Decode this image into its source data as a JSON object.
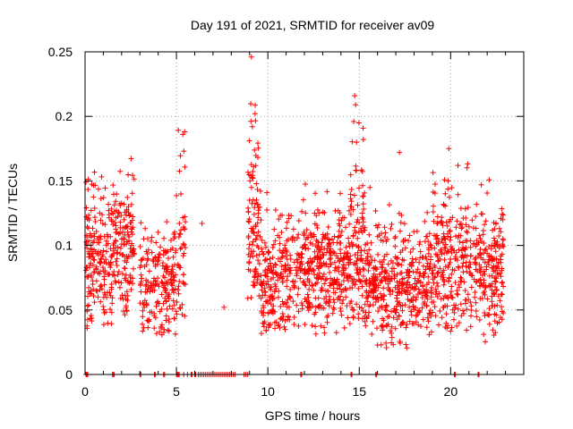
{
  "chart_data": {
    "type": "scatter",
    "title": "Day 191 of 2021, SRMTID for receiver av09",
    "xlabel": "GPS time / hours",
    "ylabel": "SRMTID / TECUs",
    "xlim": [
      0,
      24
    ],
    "ylim": [
      0,
      0.25
    ],
    "x_ticks": [
      "0",
      "5",
      "10",
      "15",
      "20"
    ],
    "x_tick_values": [
      0,
      5,
      10,
      15,
      20
    ],
    "y_ticks": [
      "0",
      "0.05",
      "0.1",
      "0.15",
      "0.2",
      "0.25"
    ],
    "y_tick_values": [
      0,
      0.05,
      0.1,
      0.15,
      0.2,
      0.25
    ],
    "grid": true,
    "marker": "+",
    "series_color": "#ff0000",
    "clusters": [
      {
        "x0": 0.05,
        "x1": 1.5,
        "center": 0.09,
        "spread": 0.03,
        "min": 0.035,
        "max": 0.16,
        "count": 190
      },
      {
        "x0": 1.5,
        "x1": 2.7,
        "center": 0.095,
        "spread": 0.025,
        "min": 0.045,
        "max": 0.175,
        "count": 150
      },
      {
        "x0": 3.0,
        "x1": 5.0,
        "center": 0.07,
        "spread": 0.02,
        "min": 0.03,
        "max": 0.13,
        "count": 200
      },
      {
        "x0": 5.0,
        "x1": 5.5,
        "center": 0.095,
        "spread": 0.04,
        "min": 0.045,
        "max": 0.19,
        "count": 45
      },
      {
        "x0": 8.9,
        "x1": 9.6,
        "center": 0.12,
        "spread": 0.035,
        "min": 0.05,
        "max": 0.21,
        "count": 100
      },
      {
        "x0": 9.6,
        "x1": 11.3,
        "center": 0.075,
        "spread": 0.025,
        "min": 0.03,
        "max": 0.165,
        "count": 200
      },
      {
        "x0": 11.3,
        "x1": 14.5,
        "center": 0.082,
        "spread": 0.022,
        "min": 0.03,
        "max": 0.15,
        "count": 380
      },
      {
        "x0": 14.5,
        "x1": 15.3,
        "center": 0.1,
        "spread": 0.035,
        "min": 0.04,
        "max": 0.215,
        "count": 110
      },
      {
        "x0": 15.3,
        "x1": 19.0,
        "center": 0.07,
        "spread": 0.022,
        "min": 0.02,
        "max": 0.17,
        "count": 430
      },
      {
        "x0": 19.0,
        "x1": 21.0,
        "center": 0.09,
        "spread": 0.028,
        "min": 0.03,
        "max": 0.175,
        "count": 230
      },
      {
        "x0": 21.0,
        "x1": 22.9,
        "center": 0.085,
        "spread": 0.025,
        "min": 0.025,
        "max": 0.155,
        "count": 220
      }
    ],
    "outliers": [
      {
        "x": 9.1,
        "y": 0.246
      },
      {
        "x": 9.3,
        "y": 0.202
      },
      {
        "x": 9.15,
        "y": 0.192
      },
      {
        "x": 5.35,
        "y": 0.186
      },
      {
        "x": 5.45,
        "y": 0.188
      },
      {
        "x": 14.75,
        "y": 0.216
      },
      {
        "x": 14.8,
        "y": 0.209
      },
      {
        "x": 14.7,
        "y": 0.196
      },
      {
        "x": 14.85,
        "y": 0.18
      },
      {
        "x": 6.4,
        "y": 0.117
      },
      {
        "x": 7.6,
        "y": 0.052
      },
      {
        "x": 0.05,
        "y": 0.149
      },
      {
        "x": 17.2,
        "y": 0.172
      },
      {
        "x": 19.9,
        "y": 0.175
      },
      {
        "x": 20.4,
        "y": 0.162
      }
    ],
    "zero_points_x": [
      0.05,
      0.1,
      0.15,
      1.5,
      1.55,
      1.6,
      3.0,
      3.05,
      3.8,
      3.85,
      4.3,
      4.35,
      5.0,
      5.05,
      5.1,
      5.15,
      5.4,
      5.6,
      5.8,
      5.85,
      6.0,
      6.05,
      6.2,
      6.3,
      6.4,
      6.5,
      6.6,
      6.7,
      6.8,
      6.9,
      7.0,
      7.1,
      7.2,
      7.3,
      7.4,
      7.5,
      7.6,
      7.7,
      7.8,
      7.9,
      8.0,
      8.1,
      8.2,
      8.7,
      8.8,
      8.9,
      11.8,
      11.85,
      14.55,
      14.6,
      15.9,
      15.95,
      20.2,
      20.25,
      21.5,
      21.55
    ]
  }
}
